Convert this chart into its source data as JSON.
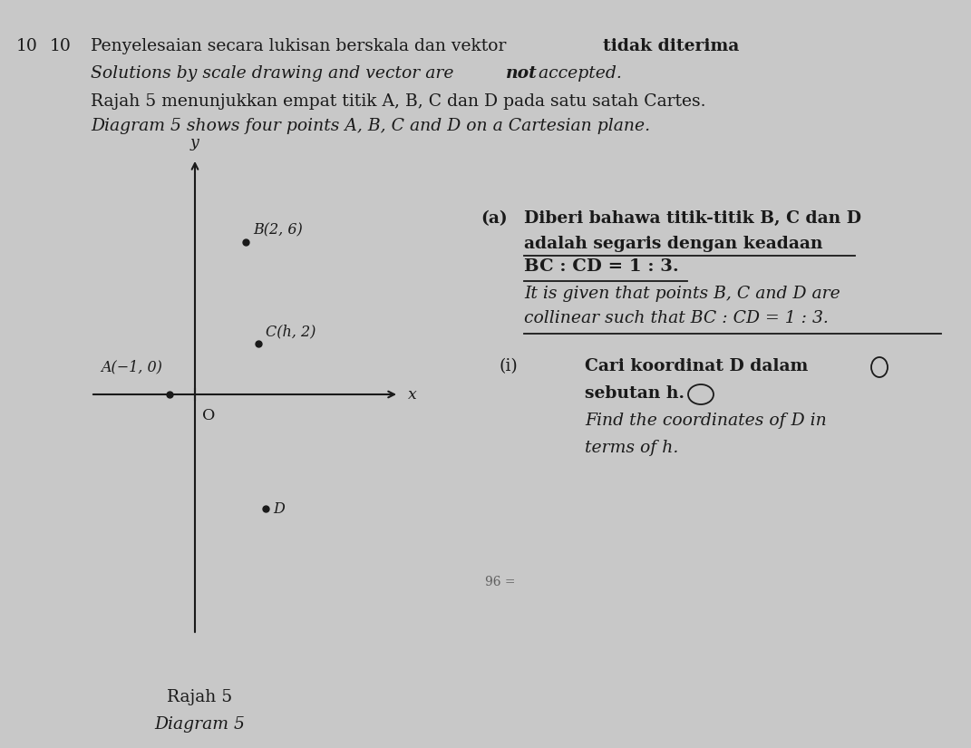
{
  "bg_color": "#c8c8c8",
  "text_color": "#1a1a1a",
  "q_num_1": "10",
  "q_num_2": "10",
  "line1_normal": "Penyelesaian secara lukisan berskala dan vektor ",
  "line1_bold": "tidak diterima",
  "line2_italic": "Solutions by scale drawing and vector are ",
  "line2_bold_italic": "not",
  "line2_end": " accepted.",
  "line3": "Rajah 5 menunjukkan empat titik A, B, C dan D pada satu satah Cartes.",
  "line4": "Diagram 5 shows four points A, B, C and D on a Cartesian plane.",
  "part_a_label": "(a)",
  "a_m1": "Diberi bahawa titik-titik B, C dan D",
  "a_m2": "adalah segaris dengan keadaan",
  "a_m3": "BC : CD = 1 : 3.",
  "a_e1": "It is given that points B, C and D are",
  "a_e2": "collinear such that BC : CD = 1 : 3.",
  "part_i_label": "(i)",
  "i_m1": "Cari koordinat D dalam",
  "i_m2": "sebutan h.",
  "i_e1": "Find the coordinates of D in",
  "i_e2": "terms of h.",
  "diagram_malay": "Rajah 5",
  "diagram_eng": "Diagram 5",
  "pt_A": "A(−1, 0)",
  "pt_B": "B(2, 6)",
  "pt_C": "C(h, 2)",
  "pt_D": "D",
  "handwritten": "96 ="
}
